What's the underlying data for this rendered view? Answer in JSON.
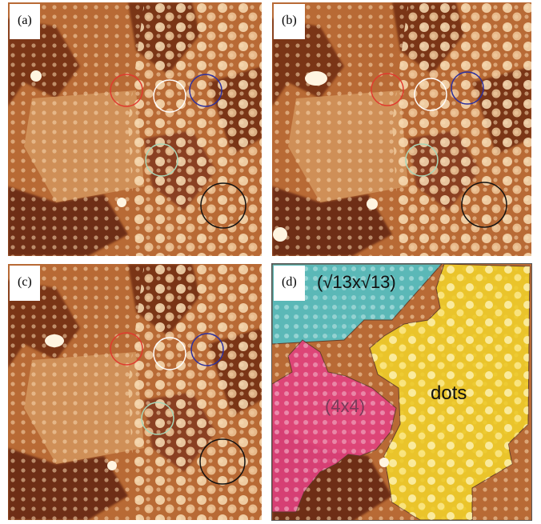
{
  "figure": {
    "panels": [
      {
        "id": "a",
        "label": "(a)"
      },
      {
        "id": "b",
        "label": "(b)"
      },
      {
        "id": "c",
        "label": "(c)"
      },
      {
        "id": "d",
        "label": "(d)"
      }
    ],
    "regions": {
      "sqrt13": "(√13x√13)",
      "four_by_four": "(4x4)",
      "dots": "dots"
    },
    "colors": {
      "stm_dark": "#6e2d12",
      "stm_mid": "#b86a35",
      "stm_bright": "#f2c89a",
      "stm_spot": "#fff4e0",
      "circle_red": "#e03a2e",
      "circle_white": "#ffffff",
      "circle_blue": "#2b2f9e",
      "circle_green": "#a7d7b8",
      "circle_black": "#111111",
      "region_cyan": "#4fc3c9",
      "region_magenta": "#e2417f",
      "region_yellow": "#f1d12a"
    }
  }
}
